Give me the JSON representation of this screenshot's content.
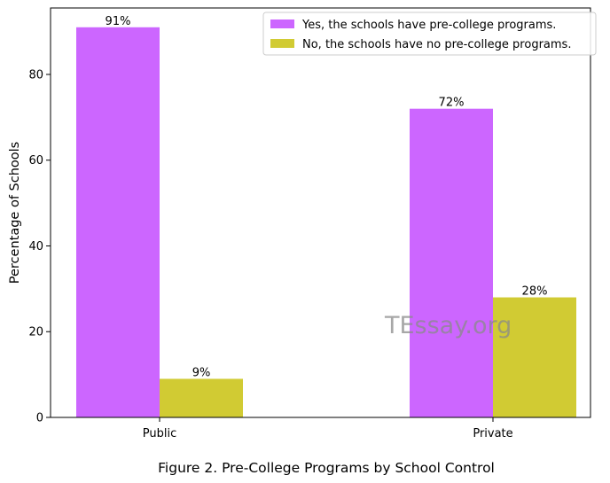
{
  "chart_data": {
    "type": "bar",
    "categories": [
      "Public",
      "Private"
    ],
    "series": [
      {
        "name": "Yes, the schools have pre-college programs.",
        "values": [
          91,
          72
        ],
        "labels": [
          "91%",
          "72%"
        ],
        "color": "#cc66ff"
      },
      {
        "name": "No, the schools have no pre-college programs.",
        "values": [
          9,
          28
        ],
        "labels": [
          "9%",
          "28%"
        ],
        "color": "#d1cb33"
      }
    ],
    "title": "",
    "xlabel": "",
    "ylabel": "Percentage of Schools",
    "ylim": [
      0,
      95.5
    ],
    "yticks": [
      0,
      20,
      40,
      60,
      80
    ],
    "grid": false,
    "legend_position": "top-right"
  },
  "caption": "Figure 2. Pre-College Programs by School Control",
  "watermark": "TEssay.org"
}
